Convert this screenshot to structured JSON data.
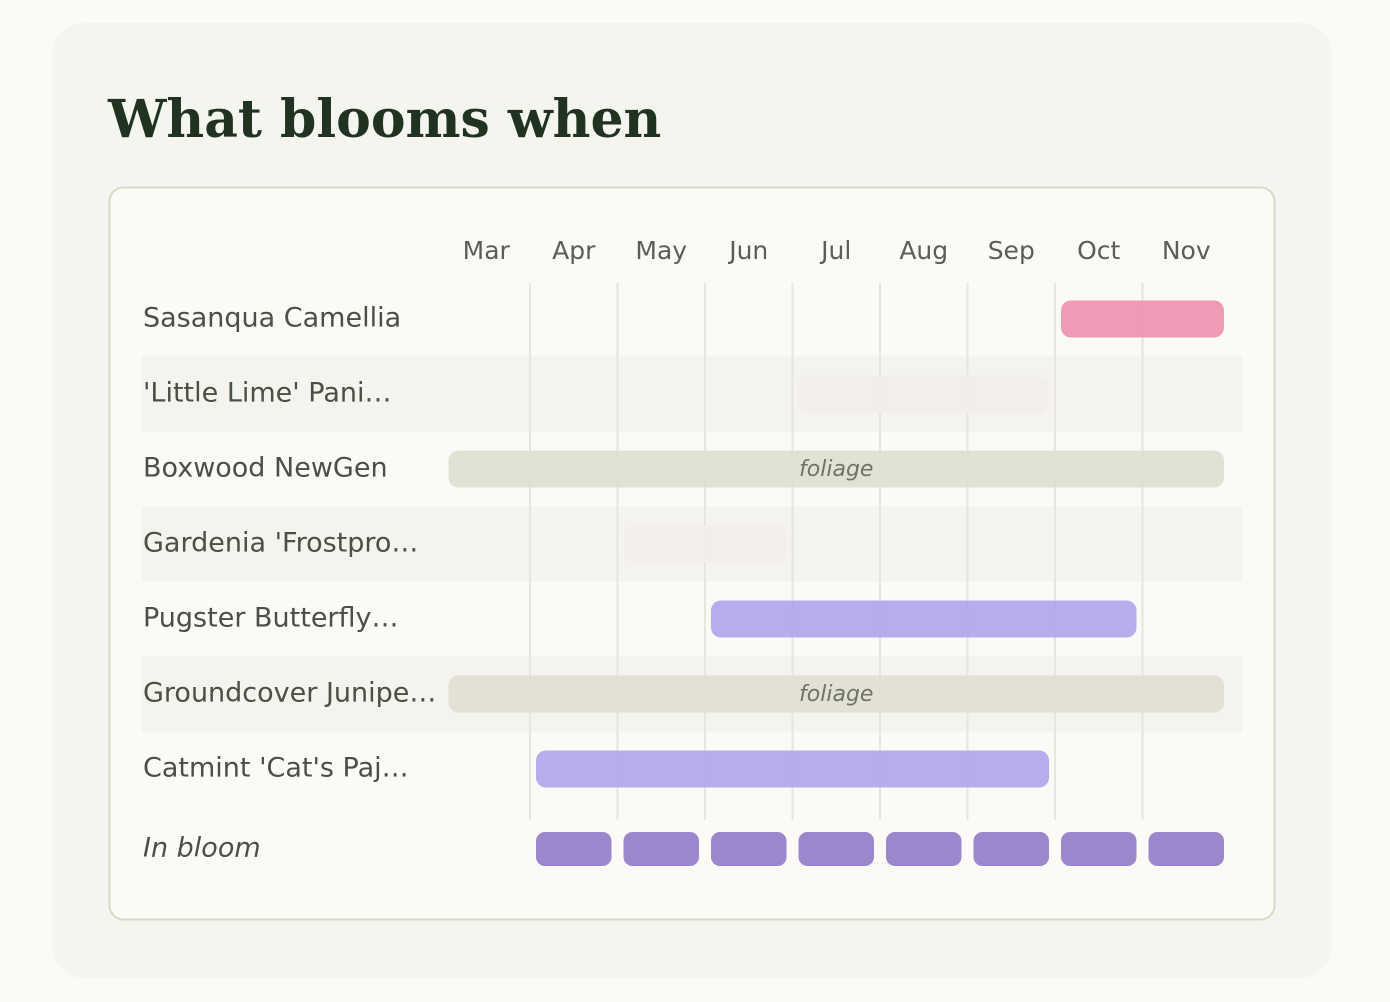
{
  "chart_data": {
    "type": "gantt",
    "title": "What blooms when",
    "categories": [
      "Mar",
      "Apr",
      "May",
      "Jun",
      "Jul",
      "Aug",
      "Sep",
      "Oct",
      "Nov"
    ],
    "rows": [
      {
        "name": "Sasanqua Camellia",
        "start": 7,
        "end": 8,
        "color": "#ee93b0"
      },
      {
        "name": "'Little Lime' Pani…",
        "start": 4,
        "end": 6,
        "color": "#f1efe9"
      },
      {
        "name": "Boxwood NewGen",
        "start": 0,
        "end": 8,
        "color": "#e0e0d0",
        "label": "foliage"
      },
      {
        "name": "Gardenia 'Frostpro…",
        "start": 2,
        "end": 3,
        "color": "#f1efe9"
      },
      {
        "name": "Pugster Butterfly…",
        "start": 3,
        "end": 7,
        "color": "#afa6ea"
      },
      {
        "name": "Groundcover Junipe…",
        "start": 0,
        "end": 8,
        "color": "#e0e0d0",
        "label": "foliage"
      },
      {
        "name": "Catmint 'Cat's Paj…",
        "start": 1,
        "end": 6,
        "color": "#afa6ea"
      }
    ],
    "in_bloom": {
      "name": "In bloom",
      "start": 1,
      "end": 8,
      "color": "#9c86cc"
    }
  }
}
